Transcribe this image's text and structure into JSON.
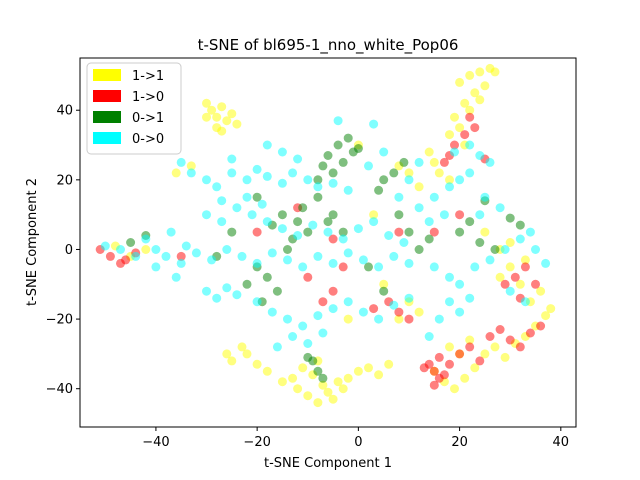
{
  "chart_data": {
    "type": "scatter",
    "title": "t-SNE of bl695-1_nno_white_Pop06",
    "xlabel": "t-SNE Component 1",
    "ylabel": "t-SNE Component 2",
    "xlim": [
      -55,
      43
    ],
    "ylim": [
      -51,
      55
    ],
    "xticks": [
      -40,
      -20,
      0,
      20,
      40
    ],
    "yticks": [
      -40,
      -20,
      0,
      20,
      40
    ],
    "grid": false,
    "legend_position": "top-left",
    "point_alpha": 0.5,
    "series": [
      {
        "name": "1->1",
        "color": "#ffff00",
        "points": [
          [
            -30,
            42
          ],
          [
            -29,
            40
          ],
          [
            -28,
            38
          ],
          [
            -27,
            41
          ],
          [
            -26,
            37
          ],
          [
            -25,
            39
          ],
          [
            -28,
            35
          ],
          [
            -24,
            36
          ],
          [
            -30,
            38
          ],
          [
            -27,
            34
          ],
          [
            20,
            48
          ],
          [
            22,
            50
          ],
          [
            24,
            51
          ],
          [
            26,
            52
          ],
          [
            23,
            45
          ],
          [
            21,
            42
          ],
          [
            19,
            38
          ],
          [
            22,
            40
          ],
          [
            25,
            47
          ],
          [
            20,
            35
          ],
          [
            18,
            33
          ],
          [
            24,
            43
          ],
          [
            27,
            51
          ],
          [
            21,
            30
          ],
          [
            -15,
            -38
          ],
          [
            -12,
            -40
          ],
          [
            -10,
            -42
          ],
          [
            -8,
            -44
          ],
          [
            -6,
            -41
          ],
          [
            -4,
            -38
          ],
          [
            -9,
            -36
          ],
          [
            -11,
            -34
          ],
          [
            -7,
            -39
          ],
          [
            -5,
            -43
          ],
          [
            -3,
            -40
          ],
          [
            -13,
            -37
          ],
          [
            -8,
            -32
          ],
          [
            -25,
            -32
          ],
          [
            -22,
            -30
          ],
          [
            -20,
            -33
          ],
          [
            -18,
            -35
          ],
          [
            -23,
            -28
          ],
          [
            -26,
            -30
          ],
          [
            15,
            -35
          ],
          [
            17,
            -38
          ],
          [
            19,
            -40
          ],
          [
            21,
            -37
          ],
          [
            23,
            -34
          ],
          [
            25,
            -30
          ],
          [
            27,
            -28
          ],
          [
            29,
            -31
          ],
          [
            31,
            -27
          ],
          [
            20,
            -30
          ],
          [
            22,
            -26
          ],
          [
            18,
            -28
          ],
          [
            33,
            -25
          ],
          [
            35,
            -22
          ],
          [
            37,
            -19
          ],
          [
            34,
            -15
          ],
          [
            36,
            -12
          ],
          [
            38,
            -17
          ],
          [
            32,
            -10
          ],
          [
            30,
            -5
          ],
          [
            33,
            -3
          ],
          [
            28,
            -8
          ],
          [
            15,
            25
          ],
          [
            18,
            20
          ],
          [
            12,
            18
          ],
          [
            10,
            22
          ],
          [
            8,
            24
          ],
          [
            14,
            28
          ],
          [
            16,
            22
          ],
          [
            2,
            -34
          ],
          [
            4,
            -36
          ],
          [
            6,
            -33
          ],
          [
            0,
            -35
          ],
          [
            -2,
            -37
          ],
          [
            -48,
            1
          ],
          [
            -45,
            -2
          ],
          [
            -42,
            0
          ],
          [
            -36,
            22
          ],
          [
            -33,
            24
          ],
          [
            25,
            5
          ],
          [
            28,
            0
          ],
          [
            30,
            2
          ],
          [
            10,
            -15
          ],
          [
            12,
            -18
          ],
          [
            8,
            -20
          ],
          [
            5,
            -10
          ],
          [
            -2,
            -20
          ],
          [
            0,
            30
          ],
          [
            3,
            10
          ]
        ]
      },
      {
        "name": "1->0",
        "color": "#ff0000",
        "points": [
          [
            -51,
            0
          ],
          [
            -49,
            -2
          ],
          [
            -47,
            -4
          ],
          [
            -46,
            -3
          ],
          [
            -44,
            -1
          ],
          [
            15,
            -35
          ],
          [
            16,
            -37
          ],
          [
            14,
            -33
          ],
          [
            17,
            -36
          ],
          [
            15,
            -39
          ],
          [
            13,
            -34
          ],
          [
            18,
            -33
          ],
          [
            16,
            -31
          ],
          [
            20,
            -30
          ],
          [
            22,
            -28
          ],
          [
            24,
            -32
          ],
          [
            26,
            -25
          ],
          [
            28,
            -23
          ],
          [
            30,
            -26
          ],
          [
            32,
            -28
          ],
          [
            34,
            -24
          ],
          [
            36,
            -22
          ],
          [
            19,
            30
          ],
          [
            21,
            33
          ],
          [
            23,
            35
          ],
          [
            18,
            27
          ],
          [
            25,
            26
          ],
          [
            17,
            25
          ],
          [
            22,
            38
          ],
          [
            31,
            -8
          ],
          [
            33,
            -5
          ],
          [
            35,
            -10
          ],
          [
            29,
            -10
          ],
          [
            32,
            -14
          ],
          [
            6,
            -15
          ],
          [
            8,
            -18
          ],
          [
            3,
            -17
          ],
          [
            10,
            -20
          ],
          [
            -5,
            -12
          ],
          [
            -7,
            -15
          ],
          [
            -10,
            -8
          ],
          [
            -3,
            -5
          ],
          [
            -20,
            5
          ],
          [
            -35,
            -2
          ],
          [
            -12,
            12
          ],
          [
            15,
            5
          ],
          [
            20,
            10
          ],
          [
            -5,
            3
          ],
          [
            8,
            5
          ]
        ]
      },
      {
        "name": "0->1",
        "color": "#008000",
        "points": [
          [
            -8,
            20
          ],
          [
            -5,
            22
          ],
          [
            -3,
            25
          ],
          [
            -1,
            28
          ],
          [
            -4,
            30
          ],
          [
            -6,
            27
          ],
          [
            -2,
            32
          ],
          [
            0,
            29
          ],
          [
            -7,
            24
          ],
          [
            5,
            20
          ],
          [
            7,
            22
          ],
          [
            9,
            25
          ],
          [
            4,
            17
          ],
          [
            -15,
            10
          ],
          [
            -12,
            8
          ],
          [
            -10,
            5
          ],
          [
            -13,
            3
          ],
          [
            -17,
            7
          ],
          [
            -11,
            12
          ],
          [
            -14,
            0
          ],
          [
            -20,
            -5
          ],
          [
            -18,
            -8
          ],
          [
            -22,
            -10
          ],
          [
            -16,
            -12
          ],
          [
            -19,
            -15
          ],
          [
            -9,
            -32
          ],
          [
            -8,
            -35
          ],
          [
            -7,
            -37
          ],
          [
            -10,
            -31
          ],
          [
            -5,
            10
          ],
          [
            -3,
            5
          ],
          [
            -8,
            15
          ],
          [
            -6,
            8
          ],
          [
            12,
            0
          ],
          [
            14,
            3
          ],
          [
            8,
            10
          ],
          [
            10,
            5
          ],
          [
            20,
            5
          ],
          [
            22,
            8
          ],
          [
            25,
            14
          ],
          [
            24,
            2
          ],
          [
            27,
            0
          ],
          [
            30,
            9
          ],
          [
            32,
            7
          ],
          [
            -45,
            2
          ],
          [
            -42,
            4
          ],
          [
            -28,
            -2
          ],
          [
            -25,
            5
          ],
          [
            -20,
            15
          ],
          [
            2,
            -5
          ],
          [
            5,
            -12
          ]
        ]
      },
      {
        "name": "0->0",
        "color": "#00ffff",
        "points": [
          [
            -35,
            25
          ],
          [
            -33,
            22
          ],
          [
            -30,
            20
          ],
          [
            -28,
            18
          ],
          [
            -25,
            22
          ],
          [
            -22,
            20
          ],
          [
            -20,
            23
          ],
          [
            -18,
            21
          ],
          [
            -15,
            19
          ],
          [
            -13,
            22
          ],
          [
            -10,
            20
          ],
          [
            -8,
            18
          ],
          [
            -5,
            19
          ],
          [
            -2,
            17
          ],
          [
            -30,
            10
          ],
          [
            -27,
            8
          ],
          [
            -24,
            12
          ],
          [
            -21,
            10
          ],
          [
            -18,
            8
          ],
          [
            -15,
            6
          ],
          [
            -12,
            4
          ],
          [
            -9,
            7
          ],
          [
            -6,
            5
          ],
          [
            -3,
            3
          ],
          [
            0,
            6
          ],
          [
            3,
            8
          ],
          [
            6,
            4
          ],
          [
            9,
            2
          ],
          [
            -40,
            0
          ],
          [
            -38,
            -2
          ],
          [
            -35,
            -4
          ],
          [
            -32,
            -1
          ],
          [
            -29,
            -3
          ],
          [
            -26,
            0
          ],
          [
            -23,
            -2
          ],
          [
            -20,
            -4
          ],
          [
            -17,
            -1
          ],
          [
            -14,
            -3
          ],
          [
            -11,
            -5
          ],
          [
            -8,
            -2
          ],
          [
            -5,
            -4
          ],
          [
            -2,
            -1
          ],
          [
            1,
            -3
          ],
          [
            4,
            -5
          ],
          [
            7,
            -2
          ],
          [
            10,
            -4
          ],
          [
            -30,
            -12
          ],
          [
            -28,
            -14
          ],
          [
            -26,
            -11
          ],
          [
            -24,
            -13
          ],
          [
            -20,
            -15
          ],
          [
            -17,
            -18
          ],
          [
            -14,
            -20
          ],
          [
            -11,
            -22
          ],
          [
            -8,
            -19
          ],
          [
            -5,
            -17
          ],
          [
            -2,
            -15
          ],
          [
            1,
            -18
          ],
          [
            4,
            -20
          ],
          [
            7,
            -16
          ],
          [
            10,
            -14
          ],
          [
            -16,
            -28
          ],
          [
            -13,
            -25
          ],
          [
            -10,
            -27
          ],
          [
            -7,
            -24
          ],
          [
            12,
            12
          ],
          [
            15,
            15
          ],
          [
            18,
            18
          ],
          [
            20,
            20
          ],
          [
            22,
            22
          ],
          [
            25,
            15
          ],
          [
            28,
            12
          ],
          [
            14,
            8
          ],
          [
            17,
            10
          ],
          [
            24,
            10
          ],
          [
            15,
            -5
          ],
          [
            18,
            -8
          ],
          [
            20,
            -10
          ],
          [
            23,
            -5
          ],
          [
            26,
            -3
          ],
          [
            29,
            0
          ],
          [
            32,
            3
          ],
          [
            35,
            0
          ],
          [
            37,
            -4
          ],
          [
            34,
            5
          ],
          [
            -50,
            1
          ],
          [
            -47,
            0
          ],
          [
            -44,
            -2
          ],
          [
            -42,
            3
          ],
          [
            -37,
            5
          ],
          [
            -34,
            1
          ],
          [
            -18,
            30
          ],
          [
            -15,
            28
          ],
          [
            -12,
            26
          ],
          [
            2,
            24
          ],
          [
            5,
            28
          ],
          [
            8,
            15
          ],
          [
            10,
            20
          ],
          [
            12,
            25
          ],
          [
            19,
            28
          ],
          [
            22,
            30
          ],
          [
            24,
            27
          ],
          [
            26,
            25
          ],
          [
            -4,
            37
          ],
          [
            3,
            36
          ],
          [
            -22,
            15
          ],
          [
            -19,
            13
          ],
          [
            -25,
            26
          ],
          [
            -27,
            14
          ],
          [
            14,
            -25
          ],
          [
            16,
            -20
          ],
          [
            18,
            -15
          ],
          [
            20,
            -18
          ],
          [
            22,
            -14
          ],
          [
            30,
            -12
          ],
          [
            33,
            -15
          ],
          [
            -36,
            -8
          ],
          [
            -40,
            -5
          ]
        ]
      }
    ]
  }
}
